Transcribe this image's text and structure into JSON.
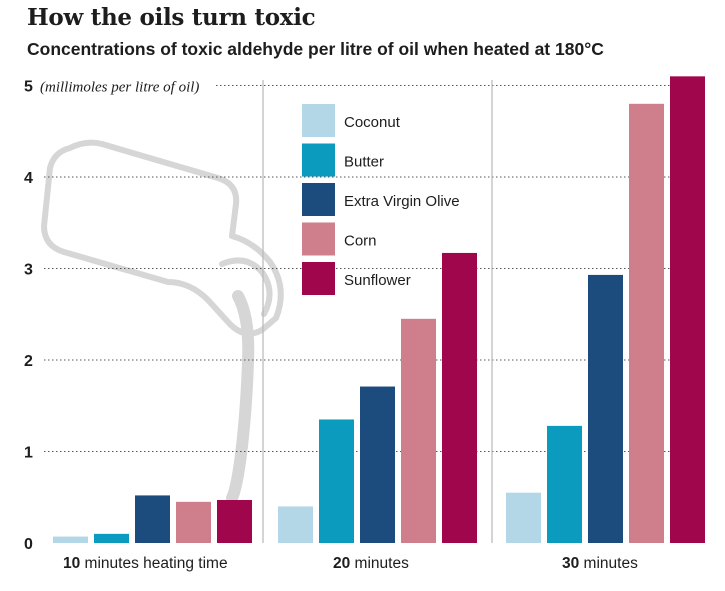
{
  "title": "How the oils turn toxic",
  "subtitle": "Concentrations of toxic aldehyde per litre of oil when heated at 180°C",
  "colors": {
    "Coconut": "#b3d7e6",
    "Butter": "#0a9bbf",
    "Extra Virgin Olive": "#1c4b7e",
    "Corn": "#cf7f8c",
    "Sunflower": "#a0064b"
  },
  "chart_data": {
    "type": "bar",
    "categories_bold": [
      "10",
      "20",
      "30"
    ],
    "categories_rest": [
      " minutes heating time",
      " minutes",
      " minutes"
    ],
    "ylim": [
      0,
      5
    ],
    "yticks": [
      "0",
      "1",
      "2",
      "3",
      "4",
      "5"
    ],
    "ylabel": "(millimoles per litre of oil)",
    "grid": "dotted horizontal lines at each tick",
    "legend_position": "top-center",
    "series": [
      {
        "name": "Coconut",
        "values": [
          0.07,
          0.4,
          0.55
        ]
      },
      {
        "name": "Butter",
        "values": [
          0.1,
          1.35,
          1.28
        ]
      },
      {
        "name": "Extra Virgin Olive",
        "values": [
          0.52,
          1.71,
          2.93
        ]
      },
      {
        "name": "Corn",
        "values": [
          0.45,
          2.45,
          4.8
        ]
      },
      {
        "name": "Sunflower",
        "values": [
          0.47,
          3.17,
          5.1
        ]
      }
    ]
  }
}
